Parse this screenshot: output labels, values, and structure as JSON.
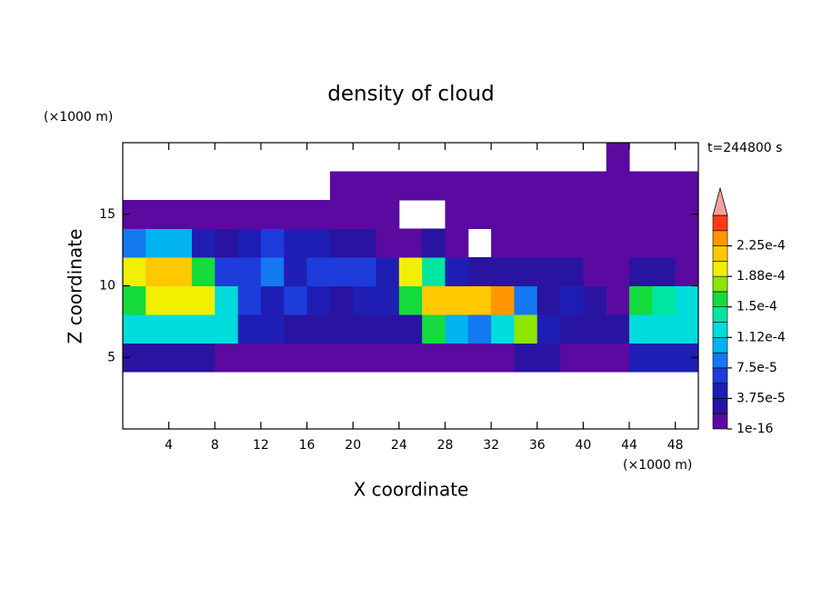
{
  "chart_data": {
    "type": "contour",
    "title": "density of cloud",
    "xlabel": "X coordinate",
    "ylabel": "Z coordinate",
    "x_unit": "(×1000 m)",
    "y_unit": "(×1000 m)",
    "annotation": "t=244800 s",
    "xlim": [
      0,
      50
    ],
    "ylim": [
      0,
      20
    ],
    "xticks": [
      4,
      8,
      12,
      16,
      20,
      24,
      28,
      32,
      36,
      40,
      44,
      48
    ],
    "yticks": [
      5,
      10,
      15
    ],
    "z": [
      [
        null,
        null,
        null,
        null,
        null,
        null,
        null,
        null,
        null,
        null,
        null,
        null,
        null,
        null,
        null,
        null,
        null,
        null,
        null,
        null,
        null,
        null,
        null,
        null,
        null
      ],
      [
        null,
        null,
        null,
        null,
        null,
        null,
        null,
        null,
        null,
        null,
        null,
        null,
        null,
        null,
        null,
        null,
        null,
        null,
        null,
        null,
        null,
        null,
        null,
        null,
        null
      ],
      [
        3e-05,
        3e-05,
        3e-05,
        3e-05,
        1e-05,
        1e-05,
        1e-05,
        1e-05,
        1e-05,
        1e-05,
        1e-05,
        1e-05,
        1e-05,
        1e-05,
        1e-05,
        1e-05,
        1e-05,
        2e-05,
        2e-05,
        1e-05,
        1e-05,
        1e-05,
        4e-05,
        4e-05,
        4e-05
      ],
      [
        0.00013,
        0.00013,
        0.00013,
        0.00013,
        0.00012,
        5e-05,
        5e-05,
        3e-05,
        3e-05,
        3e-05,
        3e-05,
        3e-05,
        2e-05,
        0.00015,
        0.0001,
        8e-05,
        0.00012,
        0.00018,
        5e-05,
        3e-05,
        2e-05,
        3e-05,
        0.00012,
        0.00013,
        0.00012
      ],
      [
        0.00016,
        0.00019,
        0.0002,
        0.00019,
        0.00013,
        6e-05,
        5e-05,
        6e-05,
        4e-05,
        3e-05,
        4e-05,
        4e-05,
        0.00016,
        0.00021,
        0.00022,
        0.00021,
        0.00023,
        9e-05,
        3e-05,
        4e-05,
        2e-05,
        1e-05,
        0.00015,
        0.00014,
        0.00013
      ],
      [
        0.00019,
        0.00022,
        0.00021,
        0.00016,
        6e-05,
        7e-05,
        9e-05,
        5e-05,
        6e-05,
        7e-05,
        6e-05,
        5e-05,
        0.00019,
        0.00014,
        5e-05,
        3e-05,
        2e-05,
        2e-05,
        3e-05,
        2e-05,
        1e-05,
        1e-05,
        2e-05,
        2e-05,
        1e-05
      ],
      [
        9e-05,
        0.00011,
        0.0001,
        4e-05,
        3e-05,
        5e-05,
        6e-05,
        5e-05,
        4e-05,
        3e-05,
        2e-05,
        1e-05,
        1e-05,
        2e-05,
        1e-05,
        null,
        1e-05,
        1e-16,
        1e-16,
        1e-16,
        1e-16,
        1e-16,
        1e-16,
        1e-16,
        1e-16
      ],
      [
        1e-16,
        1e-16,
        1e-16,
        1e-16,
        1e-16,
        1e-16,
        1e-16,
        1e-16,
        1e-16,
        1e-16,
        1e-16,
        1e-05,
        null,
        null,
        1e-16,
        1e-16,
        1e-16,
        1e-16,
        1e-16,
        1e-16,
        1e-16,
        1e-16,
        1e-16,
        1e-16,
        1e-16
      ],
      [
        null,
        null,
        null,
        null,
        null,
        null,
        null,
        null,
        null,
        1e-16,
        1e-16,
        1e-16,
        1e-16,
        1e-16,
        1e-16,
        1e-16,
        1e-16,
        1e-16,
        1e-16,
        1e-16,
        1e-16,
        1e-16,
        1e-16,
        1e-16,
        1e-16
      ],
      [
        null,
        null,
        null,
        null,
        null,
        null,
        null,
        null,
        null,
        null,
        null,
        null,
        null,
        null,
        null,
        null,
        null,
        null,
        null,
        null,
        null,
        1e-16,
        null,
        null,
        null
      ]
    ],
    "levels": [
      1e-16,
      1.875e-05,
      3.75e-05,
      5.625e-05,
      7.5e-05,
      9.375e-05,
      0.0001125,
      0.00013125,
      0.00015,
      0.00016875,
      0.0001875,
      0.00020625,
      0.000225,
      0.00024375,
      0.0002625
    ],
    "colors": [
      "#5a0aa0",
      "#2814a0",
      "#1e1eb4",
      "#1e3cdc",
      "#1478f0",
      "#00b4f0",
      "#00dcdc",
      "#00e6a0",
      "#14dc3c",
      "#8ce600",
      "#f0f000",
      "#ffc800",
      "#ff9600",
      "#ff3c14"
    ],
    "extend_color": "#f4a0a0",
    "colorbar_ticks": [
      {
        "value": 1e-16,
        "label": "1e-16"
      },
      {
        "value": 3.75e-05,
        "label": "3.75e-5"
      },
      {
        "value": 7.5e-05,
        "label": "7.5e-5"
      },
      {
        "value": 0.0001125,
        "label": "1.12e-4"
      },
      {
        "value": 0.00015,
        "label": "1.5e-4"
      },
      {
        "value": 0.0001875,
        "label": "1.88e-4"
      },
      {
        "value": 0.000225,
        "label": "2.25e-4"
      }
    ]
  }
}
